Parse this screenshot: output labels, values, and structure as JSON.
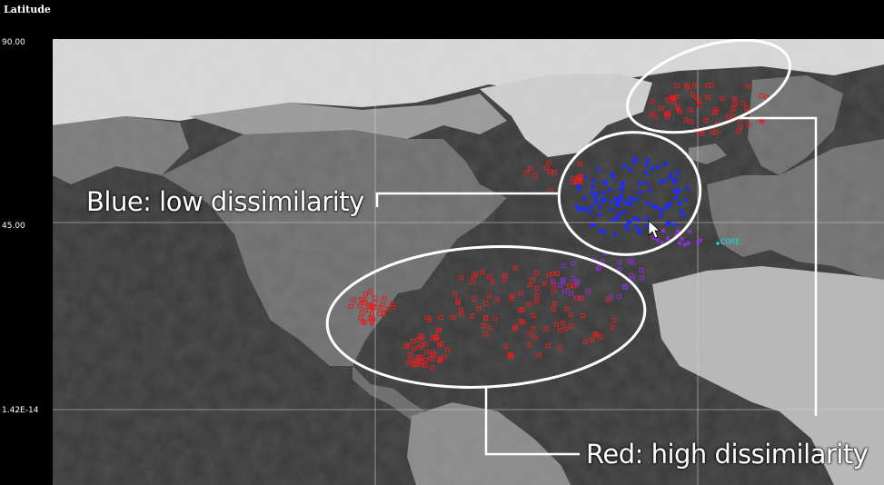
{
  "axis": {
    "title": "Latitude",
    "ticks": [
      "90.00",
      "45.00",
      "1.42E-14"
    ]
  },
  "annotations": {
    "blue_label": "Blue: low dissimilarity",
    "red_label": "Red: high dissimilarity",
    "core_label": "CORE"
  },
  "colors": {
    "low": "#1f2cff",
    "mid": "#8a2fd0",
    "high": "#e02020",
    "ellipse": "#ffffff",
    "core": "#19d3d3"
  },
  "icons": [
    "mouse-cursor-icon",
    "core-marker-icon"
  ]
}
